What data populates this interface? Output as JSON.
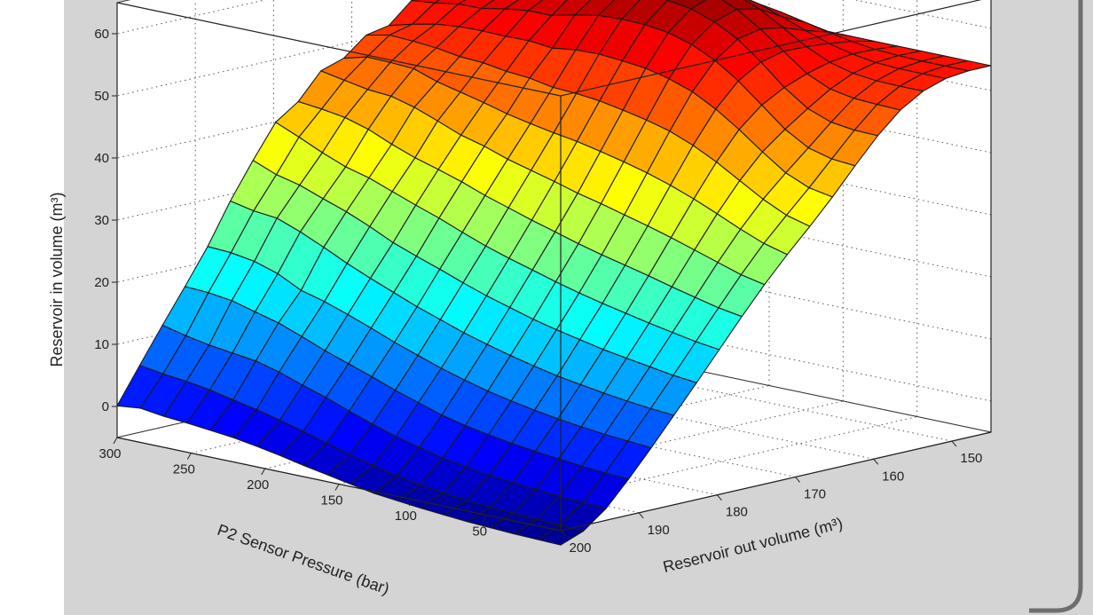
{
  "chart_data": {
    "type": "surface",
    "title": "",
    "xlabel": "Reservoir out volume  (m³)",
    "ylabel": "P2 Sensor  Pressure (bar)",
    "zlabel": "Reservoir in volume  (m³)",
    "x_ticks": [
      "150",
      "160",
      "170",
      "180",
      "190",
      "200"
    ],
    "y_ticks": [
      "50",
      "100",
      "150",
      "200",
      "250",
      "300"
    ],
    "z_ticks": [
      "0",
      "10",
      "20",
      "30",
      "40",
      "50",
      "60"
    ],
    "xlim": [
      145,
      200
    ],
    "ylim": [
      0,
      300
    ],
    "zlim": [
      -5,
      65
    ],
    "grid": true,
    "colormap": "jet",
    "colors": {
      "panel_bg": "#d4d4d4",
      "box_bg": "#ffffff",
      "mesh_line": "#1a1a1a",
      "frame_border": "#6e6e6e"
    },
    "surface": {
      "x": [
        145,
        147.89,
        150.79,
        153.68,
        156.58,
        159.47,
        162.37,
        165.26,
        168.16,
        171.05,
        173.95,
        176.84,
        179.74,
        182.63,
        185.53,
        188.42,
        191.32,
        194.21,
        197.11,
        200
      ],
      "y": [
        300,
        284.21,
        268.42,
        252.63,
        236.84,
        221.05,
        205.26,
        189.47,
        173.68,
        157.89,
        142.11,
        126.32,
        110.53,
        94.74,
        78.95,
        63.16,
        47.37,
        31.58,
        15.79,
        0
      ],
      "z": [
        [
          54,
          54.8,
          56.2,
          56.3,
          57.3,
          57.1,
          54.5,
          51.3,
          50.6,
          47.7,
          46.5,
          42.4,
          39.9,
          34.6,
          28.9,
          22.4,
          16.8,
          11.4,
          5.8,
          0.1
        ],
        [
          54,
          54.9,
          55.7,
          57.1,
          57.6,
          56.5,
          54.9,
          52.3,
          51.4,
          48.7,
          45.8,
          42,
          38.3,
          33.1,
          28.1,
          22.2,
          16.6,
          10.5,
          5.2,
          0.5
        ],
        [
          54,
          54.8,
          55.9,
          57.2,
          57.8,
          56.8,
          55.5,
          53.1,
          51.2,
          48.6,
          45.1,
          41.4,
          36.6,
          32.2,
          27.7,
          21.6,
          16.1,
          9.8,
          4.8,
          0
        ],
        [
          54,
          54.9,
          56.5,
          57.9,
          58,
          57.3,
          55.6,
          53.5,
          50.9,
          48.4,
          44.8,
          40.3,
          35.1,
          30.8,
          26.3,
          20.4,
          15.1,
          9.3,
          4.2,
          -0.3
        ],
        [
          54,
          55.1,
          57.2,
          58.5,
          58.4,
          57.9,
          56.3,
          53.6,
          50.3,
          47.1,
          43.8,
          38.7,
          34.1,
          29.5,
          24.6,
          18.5,
          14.1,
          8.8,
          3.4,
          -0.7
        ],
        [
          54,
          55.8,
          57.7,
          59.3,
          59.2,
          58.7,
          56.8,
          53.5,
          50.1,
          46.2,
          42.4,
          37.3,
          32.7,
          27.9,
          22.8,
          17.5,
          12.7,
          7.8,
          2.6,
          -1.1
        ],
        [
          54,
          56.6,
          58.9,
          59.6,
          60.4,
          59.6,
          56.8,
          53.6,
          49.5,
          45.3,
          40.9,
          36.2,
          31.3,
          26.1,
          21.2,
          16.2,
          11.2,
          6.5,
          1.7,
          -1.7
        ],
        [
          54,
          57.4,
          59.4,
          60.5,
          61.4,
          60.4,
          57.7,
          53.2,
          49.2,
          44.3,
          39.9,
          35,
          30,
          24.7,
          19.7,
          14.8,
          9.9,
          5.3,
          0.7,
          -2.4
        ],
        [
          54,
          57.7,
          60,
          61.8,
          62.1,
          61.1,
          58.4,
          53.7,
          48.5,
          43.5,
          38.6,
          33.6,
          28.5,
          23.4,
          18.2,
          13.3,
          8.6,
          3.9,
          -0.4,
          -3.2
        ],
        [
          54,
          57.8,
          60.4,
          62.3,
          62.9,
          61.6,
          58.6,
          53.8,
          48.3,
          42.8,
          37.6,
          32.4,
          27.1,
          22,
          16.9,
          12,
          7.2,
          2.6,
          -1.5,
          -3.9
        ],
        [
          54,
          57.6,
          60.1,
          62.2,
          63.1,
          61.6,
          58.5,
          53.5,
          47.9,
          42.2,
          36.6,
          31.2,
          25.9,
          20.7,
          15.6,
          10.7,
          6,
          1.4,
          -2.5,
          -4.6
        ],
        [
          54,
          57.1,
          59.3,
          61.6,
          62.4,
          61,
          58,
          53.1,
          47.2,
          41.4,
          35.5,
          30.1,
          24.8,
          19.6,
          14.5,
          9.6,
          4.8,
          0.4,
          -3.3,
          -5.3
        ],
        [
          54,
          56.3,
          58,
          60.1,
          60.9,
          59.7,
          56.9,
          52.2,
          46.4,
          40.5,
          34.6,
          29,
          23.7,
          18.5,
          13.5,
          8.6,
          3.9,
          -0.5,
          -4,
          -5.7
        ],
        [
          54,
          55.5,
          56.6,
          57.9,
          58.5,
          57.7,
          55.1,
          50.9,
          45.4,
          39.5,
          33.6,
          28,
          22.7,
          17.6,
          12.6,
          7.8,
          3.2,
          -1.1,
          -4.5,
          -6.1
        ],
        [
          54,
          54.8,
          55.3,
          55.6,
          55.7,
          54.8,
          52.6,
          48.9,
          43.9,
          38.3,
          32.6,
          27.1,
          21.8,
          16.8,
          11.8,
          7.1,
          2.6,
          -1.7,
          -4.9,
          -6.4
        ],
        [
          54,
          54.3,
          54.4,
          53.9,
          52.9,
          51.5,
          49.5,
          46.4,
          42,
          36.9,
          31.5,
          26.2,
          21,
          16,
          11.2,
          6.5,
          2.1,
          -2.1,
          -5.2,
          -6.7
        ],
        [
          54,
          54.1,
          53.8,
          52.9,
          51.2,
          48.9,
          46.4,
          43.6,
          39.8,
          35.3,
          30.3,
          25.2,
          20.2,
          15.4,
          10.6,
          6,
          1.7,
          -2.4,
          -5.4,
          -6.9
        ],
        [
          54,
          54,
          53.6,
          52.5,
          50.5,
          47.5,
          44.2,
          41,
          37.6,
          33.6,
          29.1,
          24.3,
          19.5,
          14.8,
          10.1,
          5.6,
          1.3,
          -2.7,
          -5.6,
          -7.1
        ],
        [
          54,
          54,
          53.6,
          52.4,
          50.3,
          47,
          43.2,
          39.4,
          35.8,
          32.1,
          27.9,
          23.4,
          18.8,
          14.2,
          9.7,
          5.3,
          1,
          -2.9,
          -5.8,
          -7.2
        ],
        [
          54,
          54,
          53.6,
          52.4,
          50.2,
          46.9,
          42.9,
          38.7,
          34.8,
          31.1,
          27.1,
          22.8,
          18.3,
          13.8,
          9.4,
          5,
          0.8,
          -3.1,
          -5.9,
          -7.3
        ]
      ]
    }
  }
}
